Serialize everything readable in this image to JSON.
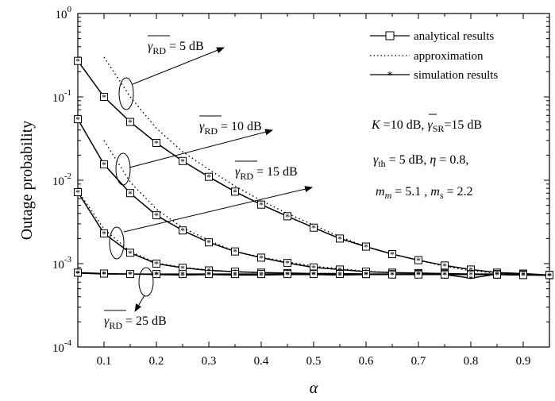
{
  "chart_data": {
    "type": "line",
    "xlabel": "α",
    "ylabel": "Outage probability",
    "xlim": [
      0.05,
      0.95
    ],
    "ylim": [
      0.0001,
      1
    ],
    "yscale": "log",
    "grid": false,
    "legend_position": "top-right",
    "x_ticks": [
      "0.1",
      "0.2",
      "0.3",
      "0.4",
      "0.5",
      "0.6",
      "0.7",
      "0.8",
      "0.9"
    ],
    "y_ticks": [
      {
        "base": "10",
        "exp": "0"
      },
      {
        "base": "10",
        "exp": "-1"
      },
      {
        "base": "10",
        "exp": "-2"
      },
      {
        "base": "10",
        "exp": "-3"
      },
      {
        "base": "10",
        "exp": "-4"
      }
    ],
    "legend": [
      {
        "label": "analytical results",
        "style": "solid",
        "marker": "square"
      },
      {
        "label": "approximation",
        "style": "dotted",
        "marker": "none"
      },
      {
        "label": "simulation results",
        "style": "solid",
        "marker": "star"
      }
    ],
    "curve_labels": [
      {
        "sym": "γ",
        "sub": "RD",
        "rest": " = 5 dB"
      },
      {
        "sym": "γ",
        "sub": "RD",
        "rest": " = 10 dB"
      },
      {
        "sym": "γ",
        "sub": "RD",
        "rest": " = 15 dB"
      },
      {
        "sym": "γ",
        "sub": "RD",
        "rest": " = 25 dB"
      }
    ],
    "params": {
      "line1": {
        "k": "K",
        "kv": " =10 dB, ",
        "g": "γ",
        "gsub": "SR",
        "gv": "=15 dB"
      },
      "line2": {
        "g": "γ",
        "gsub": "th",
        "gv": " = 5 dB, ",
        "eta": "η",
        "etav": " = 0.8,"
      },
      "line3": {
        "m": "m",
        "msub": "m",
        "mv": " = 5.1 , ",
        "s": "m",
        "ssub": "s",
        "sv": " = 2.2"
      }
    },
    "series": [
      {
        "name": "γRD = 5 dB",
        "kind": "analytical",
        "x": [
          0.05,
          0.1,
          0.15,
          0.2,
          0.25,
          0.3,
          0.35,
          0.4,
          0.45,
          0.5,
          0.55,
          0.6,
          0.65,
          0.7,
          0.75,
          0.8,
          0.85,
          0.9,
          0.95
        ],
        "y": [
          0.27,
          0.1,
          0.05,
          0.028,
          0.017,
          0.011,
          0.0073,
          0.0051,
          0.0037,
          0.0027,
          0.002,
          0.0016,
          0.0013,
          0.0011,
          0.00095,
          0.00085,
          0.00078,
          0.00076,
          0.00073
        ]
      },
      {
        "name": "γRD = 5 dB",
        "kind": "approximation",
        "x": [
          0.1,
          0.15,
          0.2,
          0.25,
          0.3,
          0.35,
          0.4,
          0.45,
          0.5,
          0.55,
          0.6,
          0.65,
          0.7,
          0.75,
          0.8,
          0.85,
          0.9,
          0.95
        ],
        "y": [
          0.3,
          0.1,
          0.042,
          0.022,
          0.0135,
          0.0085,
          0.0057,
          0.004,
          0.0029,
          0.0021,
          0.0016,
          0.0013,
          0.0011,
          0.00093,
          0.00082,
          0.00077,
          0.00075,
          0.00073
        ]
      },
      {
        "name": "γRD = 10 dB",
        "kind": "analytical",
        "x": [
          0.05,
          0.1,
          0.15,
          0.2,
          0.25,
          0.3,
          0.35,
          0.4,
          0.45,
          0.5,
          0.55,
          0.6,
          0.65,
          0.7,
          0.75,
          0.8,
          0.85,
          0.9,
          0.95
        ],
        "y": [
          0.054,
          0.0155,
          0.007,
          0.0038,
          0.0025,
          0.0018,
          0.0014,
          0.00118,
          0.00102,
          0.0009,
          0.00085,
          0.0008,
          0.00078,
          0.00077,
          0.00076,
          0.00075,
          0.00075,
          0.00074,
          0.00073
        ]
      },
      {
        "name": "γRD = 10 dB",
        "kind": "approximation",
        "x": [
          0.1,
          0.15,
          0.2,
          0.25,
          0.3,
          0.35,
          0.4,
          0.45,
          0.5,
          0.55,
          0.6,
          0.65,
          0.7,
          0.75,
          0.8,
          0.85,
          0.9,
          0.95
        ],
        "y": [
          0.03,
          0.0095,
          0.0045,
          0.0027,
          0.0019,
          0.0014,
          0.0012,
          0.00105,
          0.00093,
          0.00087,
          0.00081,
          0.00078,
          0.00077,
          0.00076,
          0.00075,
          0.00075,
          0.00074,
          0.00073
        ]
      },
      {
        "name": "γRD = 15 dB",
        "kind": "analytical",
        "x": [
          0.05,
          0.1,
          0.15,
          0.2,
          0.25,
          0.3,
          0.35,
          0.4,
          0.45,
          0.5,
          0.55,
          0.6,
          0.65,
          0.7,
          0.75,
          0.8,
          0.85,
          0.9,
          0.95
        ],
        "y": [
          0.0072,
          0.0023,
          0.00135,
          0.001,
          0.00089,
          0.00083,
          0.0008,
          0.00078,
          0.00077,
          0.00076,
          0.00076,
          0.00075,
          0.00075,
          0.00075,
          0.00074,
          0.00074,
          0.00074,
          0.00073,
          0.00073
        ]
      },
      {
        "name": "γRD = 15 dB",
        "kind": "approximation",
        "x": [
          0.05,
          0.1,
          0.15,
          0.2,
          0.25,
          0.3,
          0.35,
          0.4,
          0.45,
          0.5,
          0.55,
          0.6,
          0.65,
          0.7,
          0.75,
          0.8,
          0.85,
          0.9,
          0.95
        ],
        "y": [
          0.0075,
          0.0026,
          0.0014,
          0.00102,
          0.0009,
          0.00084,
          0.0008,
          0.00078,
          0.00077,
          0.00076,
          0.00076,
          0.00075,
          0.00075,
          0.00075,
          0.00074,
          0.00074,
          0.00074,
          0.00073,
          0.00073
        ]
      },
      {
        "name": "γRD = 25 dB",
        "kind": "analytical",
        "x": [
          0.05,
          0.1,
          0.15,
          0.2,
          0.25,
          0.3,
          0.35,
          0.4,
          0.45,
          0.5,
          0.55,
          0.6,
          0.65,
          0.7,
          0.75,
          0.8,
          0.85,
          0.9,
          0.95
        ],
        "y": [
          0.00078,
          0.00076,
          0.00075,
          0.00075,
          0.00075,
          0.00075,
          0.00075,
          0.00075,
          0.00075,
          0.00075,
          0.00075,
          0.00075,
          0.00074,
          0.00074,
          0.00074,
          0.00074,
          0.00074,
          0.00073,
          0.00073
        ]
      },
      {
        "name": "γRD = 25 dB",
        "kind": "simulation",
        "x": [
          0.05,
          0.1,
          0.15,
          0.2,
          0.25,
          0.3,
          0.35,
          0.4,
          0.45,
          0.5,
          0.55,
          0.6,
          0.65,
          0.7,
          0.75,
          0.8,
          0.85,
          0.9,
          0.95
        ],
        "y": [
          0.00077,
          0.00075,
          0.00075,
          0.00074,
          0.00073,
          0.00074,
          0.00073,
          0.00073,
          0.00074,
          0.00074,
          0.00073,
          0.00074,
          0.00074,
          0.00075,
          0.00074,
          0.00067,
          0.00075,
          0.00074,
          0.00072
        ]
      }
    ]
  }
}
